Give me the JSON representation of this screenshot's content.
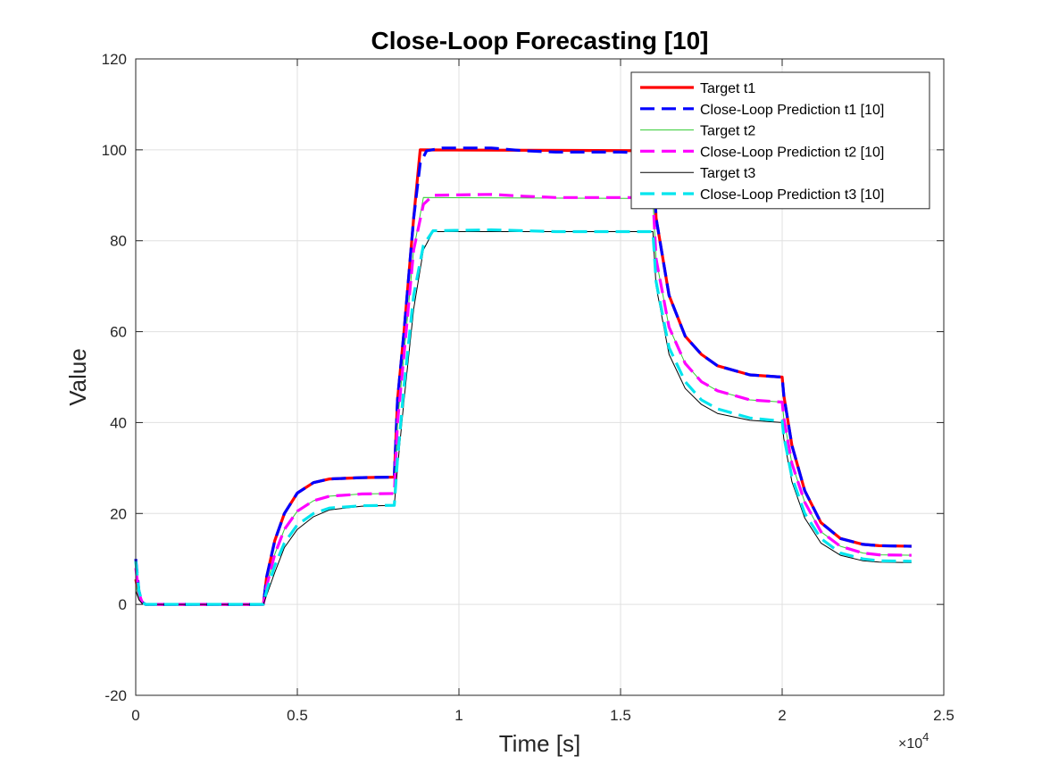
{
  "chart_data": {
    "type": "line",
    "title": "Close-Loop Forecasting [10]",
    "xlabel": "Time [s]",
    "ylabel": "Value",
    "x_multiplier": "×10",
    "x_multiplier_exp": "4",
    "xlim": [
      0,
      25000
    ],
    "ylim": [
      -20,
      120
    ],
    "xticks": [
      0,
      5000,
      10000,
      15000,
      20000,
      25000
    ],
    "xtick_labels": [
      "0",
      "0.5",
      "1",
      "1.5",
      "2",
      "2.5"
    ],
    "yticks": [
      -20,
      0,
      20,
      40,
      60,
      80,
      100,
      120
    ],
    "ytick_labels": [
      "-20",
      "0",
      "20",
      "40",
      "60",
      "80",
      "100",
      "120"
    ],
    "grid": true,
    "legend_position": "top-right",
    "series": [
      {
        "name": "Target t1",
        "color": "#ff0000",
        "style": "solid",
        "width": "thick",
        "points": [
          [
            0,
            5.5
          ],
          [
            100,
            2
          ],
          [
            200,
            0.5
          ],
          [
            300,
            0
          ],
          [
            3950,
            0
          ],
          [
            4050,
            6
          ],
          [
            4300,
            14
          ],
          [
            4600,
            20
          ],
          [
            5000,
            24.5
          ],
          [
            5500,
            26.8
          ],
          [
            6000,
            27.6
          ],
          [
            7000,
            27.9
          ],
          [
            8000,
            28
          ],
          [
            8100,
            45
          ],
          [
            8300,
            60
          ],
          [
            8600,
            85
          ],
          [
            8800,
            100
          ],
          [
            16000,
            99.8
          ],
          [
            16100,
            85
          ],
          [
            16500,
            68
          ],
          [
            17000,
            59
          ],
          [
            17500,
            55
          ],
          [
            18000,
            52.5
          ],
          [
            19000,
            50.5
          ],
          [
            20000,
            50
          ],
          [
            20050,
            46
          ],
          [
            20300,
            35
          ],
          [
            20700,
            25
          ],
          [
            21200,
            18
          ],
          [
            21800,
            14.5
          ],
          [
            22500,
            13.2
          ],
          [
            23000,
            12.9
          ],
          [
            24000,
            12.8
          ]
        ]
      },
      {
        "name": "Close-Loop Prediction t1 [10]",
        "color": "#0000ff",
        "style": "dashed",
        "width": "thick",
        "points": [
          [
            0,
            10
          ],
          [
            100,
            3
          ],
          [
            200,
            0.5
          ],
          [
            300,
            0
          ],
          [
            3950,
            0
          ],
          [
            4050,
            6
          ],
          [
            4300,
            14
          ],
          [
            4600,
            20
          ],
          [
            5000,
            24.5
          ],
          [
            5500,
            26.8
          ],
          [
            6000,
            27.6
          ],
          [
            7000,
            27.9
          ],
          [
            8000,
            28
          ],
          [
            8100,
            45
          ],
          [
            8300,
            60
          ],
          [
            8600,
            85
          ],
          [
            8800,
            97
          ],
          [
            9000,
            99.8
          ],
          [
            9500,
            100.4
          ],
          [
            11000,
            100.4
          ],
          [
            12000,
            99.8
          ],
          [
            13000,
            99.5
          ],
          [
            15000,
            99.5
          ],
          [
            16000,
            99.3
          ],
          [
            16100,
            85
          ],
          [
            16500,
            68
          ],
          [
            17000,
            59
          ],
          [
            17500,
            55
          ],
          [
            18000,
            52.5
          ],
          [
            19000,
            50.5
          ],
          [
            20000,
            50
          ],
          [
            20050,
            46
          ],
          [
            20300,
            35
          ],
          [
            20700,
            25
          ],
          [
            21200,
            18
          ],
          [
            21800,
            14.5
          ],
          [
            22500,
            13.2
          ],
          [
            23000,
            12.9
          ],
          [
            24000,
            12.8
          ]
        ]
      },
      {
        "name": "Target t2",
        "color": "#33cc33",
        "style": "solid",
        "width": "thin",
        "points": [
          [
            0,
            4
          ],
          [
            100,
            1.5
          ],
          [
            200,
            0.3
          ],
          [
            300,
            0
          ],
          [
            3950,
            0
          ],
          [
            4050,
            4
          ],
          [
            4300,
            11
          ],
          [
            4600,
            16.5
          ],
          [
            5000,
            20.5
          ],
          [
            5500,
            22.8
          ],
          [
            6000,
            23.8
          ],
          [
            7000,
            24.3
          ],
          [
            8000,
            24.4
          ],
          [
            8100,
            40
          ],
          [
            8300,
            55
          ],
          [
            8600,
            78
          ],
          [
            8900,
            89.5
          ],
          [
            16000,
            89.3
          ],
          [
            16100,
            76
          ],
          [
            16500,
            61
          ],
          [
            17000,
            53
          ],
          [
            17500,
            49
          ],
          [
            18000,
            47
          ],
          [
            19000,
            45
          ],
          [
            20000,
            44.5
          ],
          [
            20050,
            41
          ],
          [
            20300,
            31
          ],
          [
            20700,
            22.5
          ],
          [
            21200,
            16
          ],
          [
            21800,
            12.8
          ],
          [
            22500,
            11.3
          ],
          [
            23000,
            10.9
          ],
          [
            24000,
            10.8
          ]
        ]
      },
      {
        "name": "Close-Loop Prediction t2 [10]",
        "color": "#ff00ff",
        "style": "dashed",
        "width": "thick",
        "points": [
          [
            0,
            8
          ],
          [
            100,
            2.5
          ],
          [
            200,
            0.4
          ],
          [
            300,
            0
          ],
          [
            3950,
            0
          ],
          [
            4050,
            4
          ],
          [
            4300,
            11
          ],
          [
            4600,
            16.5
          ],
          [
            5000,
            20.5
          ],
          [
            5500,
            22.8
          ],
          [
            6000,
            23.8
          ],
          [
            7000,
            24.3
          ],
          [
            8000,
            24.4
          ],
          [
            8100,
            40
          ],
          [
            8300,
            55
          ],
          [
            8600,
            78
          ],
          [
            8900,
            88
          ],
          [
            9200,
            90
          ],
          [
            11000,
            90.2
          ],
          [
            12000,
            89.8
          ],
          [
            13000,
            89.5
          ],
          [
            16000,
            89.5
          ],
          [
            16100,
            76
          ],
          [
            16500,
            61
          ],
          [
            17000,
            53
          ],
          [
            17500,
            49
          ],
          [
            18000,
            47
          ],
          [
            19000,
            45
          ],
          [
            20000,
            44.5
          ],
          [
            20050,
            41
          ],
          [
            20300,
            31
          ],
          [
            20700,
            22.5
          ],
          [
            21200,
            16
          ],
          [
            21800,
            12.8
          ],
          [
            22500,
            11.3
          ],
          [
            23000,
            10.9
          ],
          [
            24000,
            10.8
          ]
        ]
      },
      {
        "name": "Target t3",
        "color": "#000000",
        "style": "solid",
        "width": "thin",
        "points": [
          [
            0,
            3
          ],
          [
            100,
            1
          ],
          [
            200,
            0.2
          ],
          [
            300,
            0
          ],
          [
            3950,
            0
          ],
          [
            4050,
            2
          ],
          [
            4300,
            7
          ],
          [
            4600,
            12.5
          ],
          [
            5000,
            16.5
          ],
          [
            5500,
            19.3
          ],
          [
            6000,
            20.8
          ],
          [
            7000,
            21.6
          ],
          [
            8000,
            21.8
          ],
          [
            8100,
            30
          ],
          [
            8300,
            45
          ],
          [
            8600,
            65
          ],
          [
            8900,
            78
          ],
          [
            9200,
            82
          ],
          [
            16000,
            82
          ],
          [
            16100,
            70
          ],
          [
            16500,
            55
          ],
          [
            17000,
            47.5
          ],
          [
            17500,
            44
          ],
          [
            18000,
            42
          ],
          [
            19000,
            40.5
          ],
          [
            20000,
            40
          ],
          [
            20050,
            36.5
          ],
          [
            20300,
            27
          ],
          [
            20700,
            19
          ],
          [
            21200,
            13.5
          ],
          [
            21800,
            10.8
          ],
          [
            22500,
            9.6
          ],
          [
            23000,
            9.3
          ],
          [
            24000,
            9.2
          ]
        ]
      },
      {
        "name": "Close-Loop Prediction t3 [10]",
        "color": "#00e5ee",
        "style": "dashed",
        "width": "thick",
        "points": [
          [
            0,
            9.5
          ],
          [
            100,
            3
          ],
          [
            200,
            0.5
          ],
          [
            300,
            0
          ],
          [
            3950,
            0
          ],
          [
            4050,
            3
          ],
          [
            4300,
            8.5
          ],
          [
            4600,
            13.5
          ],
          [
            5000,
            17.5
          ],
          [
            5500,
            20
          ],
          [
            6000,
            21.2
          ],
          [
            7000,
            21.7
          ],
          [
            8000,
            21.8
          ],
          [
            8100,
            32
          ],
          [
            8300,
            48
          ],
          [
            8600,
            68
          ],
          [
            8900,
            79
          ],
          [
            9200,
            82.2
          ],
          [
            11000,
            82.4
          ],
          [
            12000,
            82.2
          ],
          [
            13000,
            82
          ],
          [
            16000,
            82
          ],
          [
            16100,
            71
          ],
          [
            16500,
            56.5
          ],
          [
            17000,
            49
          ],
          [
            17500,
            45
          ],
          [
            18000,
            43
          ],
          [
            19000,
            41
          ],
          [
            20000,
            40.3
          ],
          [
            20050,
            37
          ],
          [
            20300,
            28
          ],
          [
            20700,
            20
          ],
          [
            21200,
            14.5
          ],
          [
            21800,
            11.3
          ],
          [
            22500,
            10
          ],
          [
            23000,
            9.6
          ],
          [
            24000,
            9.5
          ]
        ]
      }
    ]
  }
}
